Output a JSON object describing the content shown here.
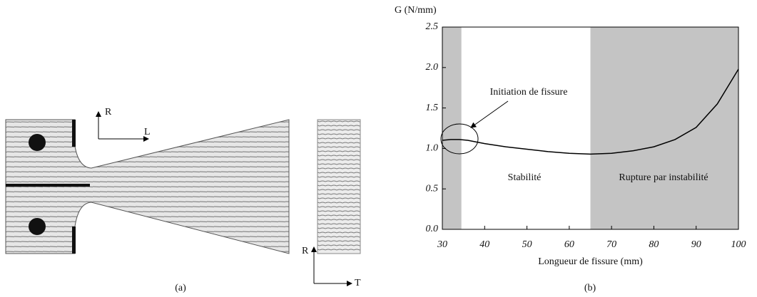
{
  "chart_data": {
    "type": "line",
    "y_label": "G (N/mm)",
    "x_label": "Longueur de fissure (mm)",
    "caption": "(b)",
    "x": [
      30,
      32,
      34,
      36,
      40,
      45,
      50,
      55,
      60,
      65,
      70,
      75,
      80,
      85,
      90,
      95,
      100
    ],
    "values": [
      1.1,
      1.11,
      1.11,
      1.1,
      1.06,
      1.02,
      0.99,
      0.96,
      0.94,
      0.93,
      0.94,
      0.97,
      1.02,
      1.11,
      1.26,
      1.55,
      1.98
    ],
    "color": "#000000",
    "shaded_x": [
      [
        30,
        34.5
      ],
      [
        65,
        100
      ]
    ],
    "shade_color": "#c4c4c4",
    "xlim": [
      30,
      100
    ],
    "ylim": [
      0,
      2.5
    ],
    "xticks": [
      30,
      40,
      50,
      60,
      70,
      80,
      90,
      100
    ],
    "yticks": [
      {
        "value": 0,
        "label": "0.0"
      },
      {
        "value": 0.5,
        "label": "0.5"
      },
      {
        "value": 1,
        "label": "1.0"
      },
      {
        "value": 1.5,
        "label": "1.5"
      },
      {
        "value": 2,
        "label": "2.0"
      },
      {
        "value": 2.5,
        "label": "2.5"
      }
    ],
    "annotations": [
      "Initiation de fissure",
      "Stabilité",
      "Rupture par instabilité"
    ]
  },
  "figure_a": {
    "caption": "(a)",
    "axis_labels": [
      "R",
      "L",
      "R",
      "T"
    ]
  }
}
